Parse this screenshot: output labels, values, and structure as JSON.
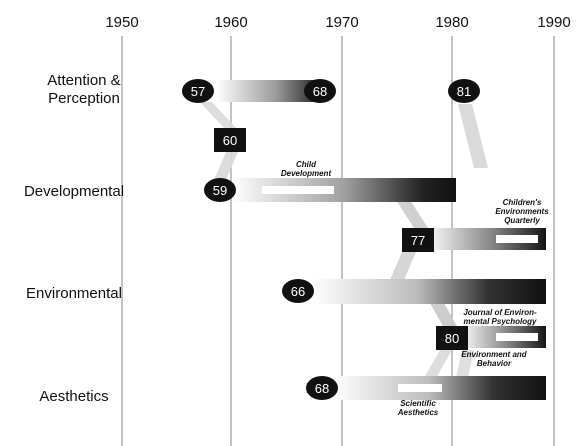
{
  "axis": {
    "years": [
      "1950",
      "1960",
      "1970",
      "1980",
      "1990"
    ]
  },
  "rows": {
    "attention": [
      "Attention &",
      "Perception"
    ],
    "developmental": "Developmental",
    "environmental": "Environmental",
    "aesthetics": "Aesthetics"
  },
  "nodes": {
    "n57": "57",
    "n68a": "68",
    "n81": "81",
    "n60": "60",
    "n59": "59",
    "n77": "77",
    "n66": "66",
    "n80": "80",
    "n68b": "68"
  },
  "notes": {
    "child_development": [
      "Child",
      "Development"
    ],
    "childrens_env": [
      "Children's",
      "Environments",
      "Quarterly"
    ],
    "journal_env": [
      "Journal of Environ-",
      "mental Psychology"
    ],
    "env_behavior": [
      "Environment and",
      "Behavior"
    ],
    "scientific_aesthetics": [
      "Scientific",
      "Aesthetics"
    ]
  }
}
